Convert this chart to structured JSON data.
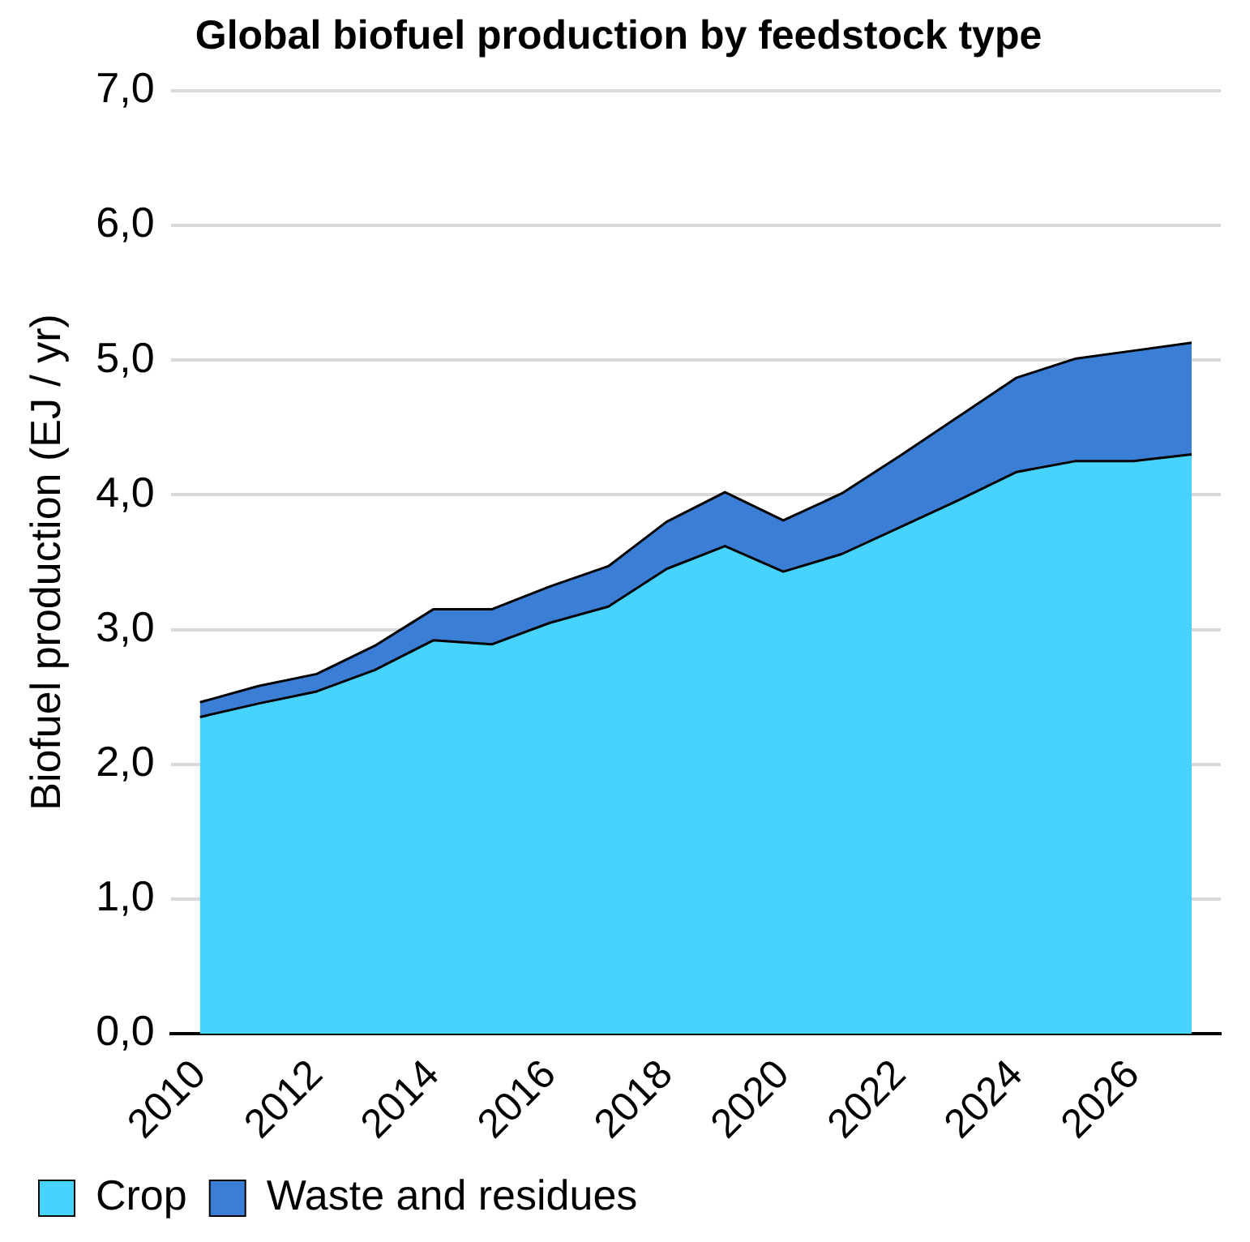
{
  "chart_data": {
    "type": "area",
    "title": "Global biofuel production by feedstock type",
    "ylabel": "Biofuel production (EJ / yr)",
    "stacked": true,
    "categories": [
      "2010",
      null,
      "2012",
      null,
      "2014",
      null,
      "2016",
      null,
      "2018",
      null,
      "2020",
      null,
      "2022",
      null,
      "2024",
      null,
      "2026",
      null
    ],
    "series": [
      {
        "name": "Crop",
        "color": "#47d3ff",
        "values": [
          2.35,
          2.45,
          2.54,
          2.7,
          2.92,
          2.89,
          3.05,
          3.17,
          3.45,
          3.62,
          3.43,
          3.56,
          3.76,
          3.96,
          4.17,
          4.25,
          4.25,
          4.3
        ]
      },
      {
        "name": "Waste and residues",
        "color": "#3a7fd5",
        "values": [
          0.11,
          0.13,
          0.13,
          0.18,
          0.23,
          0.26,
          0.27,
          0.3,
          0.35,
          0.4,
          0.38,
          0.45,
          0.53,
          0.62,
          0.7,
          0.76,
          0.82,
          0.83
        ]
      }
    ],
    "ylim": [
      0,
      7
    ],
    "yticks": [
      {
        "value": 0,
        "label": "0,0"
      },
      {
        "value": 1,
        "label": "1,0"
      },
      {
        "value": 2,
        "label": "2,0"
      },
      {
        "value": 3,
        "label": "3,0"
      },
      {
        "value": 4,
        "label": "4,0"
      },
      {
        "value": 5,
        "label": "5,0"
      },
      {
        "value": 6,
        "label": "6,0"
      },
      {
        "value": 7,
        "label": "7,0"
      }
    ],
    "grid": "y",
    "legend": "bottom"
  }
}
